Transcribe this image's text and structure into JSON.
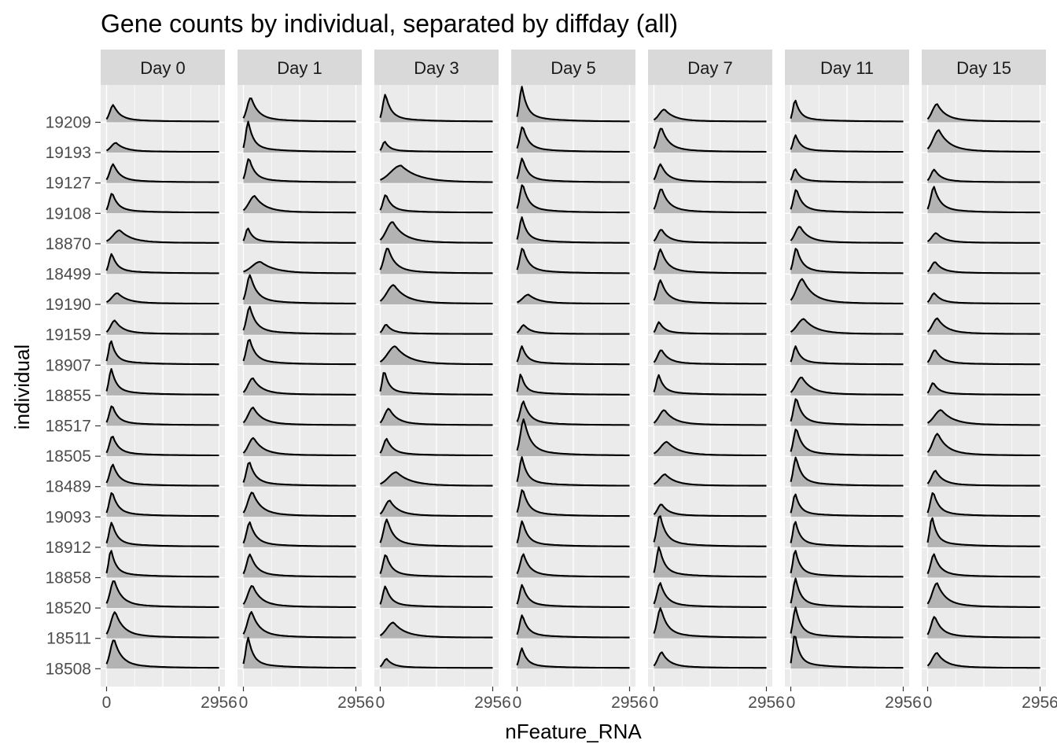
{
  "chart_data": {
    "type": "ridgeline",
    "title": "Gene counts by individual, separated by diffday (all)",
    "xlabel": "nFeature_RNA",
    "ylabel": "individual",
    "xlim": [
      0,
      2956
    ],
    "x_tick_labels": [
      "0",
      "2956"
    ],
    "grid": true,
    "individuals": [
      "19209",
      "19193",
      "19127",
      "19108",
      "18870",
      "18499",
      "19190",
      "19159",
      "18907",
      "18855",
      "18517",
      "18505",
      "18489",
      "19093",
      "18912",
      "18858",
      "18520",
      "18511",
      "18508"
    ],
    "panels": [
      {
        "label": "Day 0",
        "peaks": [
          [
            180,
            0.55
          ],
          [
            250,
            0.3
          ],
          [
            180,
            0.6
          ],
          [
            150,
            0.65
          ],
          [
            350,
            0.42
          ],
          [
            140,
            0.65
          ],
          [
            290,
            0.35
          ],
          [
            220,
            0.45
          ],
          [
            120,
            0.8
          ],
          [
            130,
            0.85
          ],
          [
            150,
            0.65
          ],
          [
            160,
            0.65
          ],
          [
            170,
            0.7
          ],
          [
            150,
            0.8
          ],
          [
            140,
            0.8
          ],
          [
            120,
            0.9
          ],
          [
            200,
            0.9
          ],
          [
            230,
            0.85
          ],
          [
            200,
            0.95
          ]
        ]
      },
      {
        "label": "Day 1",
        "peaks": [
          [
            200,
            0.8
          ],
          [
            130,
            1.0
          ],
          [
            150,
            0.8
          ],
          [
            300,
            0.55
          ],
          [
            120,
            0.5
          ],
          [
            450,
            0.38
          ],
          [
            180,
            0.95
          ],
          [
            170,
            0.9
          ],
          [
            160,
            0.85
          ],
          [
            250,
            0.55
          ],
          [
            260,
            0.58
          ],
          [
            270,
            0.58
          ],
          [
            160,
            0.8
          ],
          [
            240,
            0.8
          ],
          [
            170,
            0.8
          ],
          [
            180,
            0.75
          ],
          [
            240,
            0.72
          ],
          [
            220,
            0.85
          ],
          [
            130,
            1.0
          ]
        ]
      },
      {
        "label": "Day 3",
        "peaks": [
          [
            140,
            0.9
          ],
          [
            120,
            0.35
          ],
          [
            550,
            0.55
          ],
          [
            150,
            0.6
          ],
          [
            330,
            0.7
          ],
          [
            200,
            0.85
          ],
          [
            360,
            0.62
          ],
          [
            160,
            0.32
          ],
          [
            400,
            0.6
          ],
          [
            110,
            0.8
          ],
          [
            230,
            0.55
          ],
          [
            170,
            0.55
          ],
          [
            430,
            0.45
          ],
          [
            250,
            0.52
          ],
          [
            180,
            0.9
          ],
          [
            150,
            0.75
          ],
          [
            140,
            0.7
          ],
          [
            350,
            0.5
          ],
          [
            170,
            0.3
          ]
        ]
      },
      {
        "label": "Day 5",
        "peaks": [
          [
            130,
            1.15
          ],
          [
            150,
            0.85
          ],
          [
            140,
            0.8
          ],
          [
            150,
            0.95
          ],
          [
            130,
            0.85
          ],
          [
            150,
            0.85
          ],
          [
            300,
            0.3
          ],
          [
            180,
            0.3
          ],
          [
            130,
            0.6
          ],
          [
            100,
            0.7
          ],
          [
            170,
            0.78
          ],
          [
            180,
            1.2
          ],
          [
            130,
            0.95
          ],
          [
            150,
            0.9
          ],
          [
            140,
            0.85
          ],
          [
            170,
            0.75
          ],
          [
            140,
            0.75
          ],
          [
            140,
            0.75
          ],
          [
            130,
            0.65
          ]
        ]
      },
      {
        "label": "Day 7",
        "peaks": [
          [
            280,
            0.4
          ],
          [
            200,
            0.8
          ],
          [
            180,
            0.6
          ],
          [
            200,
            0.8
          ],
          [
            200,
            0.45
          ],
          [
            180,
            0.8
          ],
          [
            180,
            0.78
          ],
          [
            140,
            0.4
          ],
          [
            200,
            0.48
          ],
          [
            130,
            0.65
          ],
          [
            280,
            0.5
          ],
          [
            350,
            0.45
          ],
          [
            300,
            0.38
          ],
          [
            200,
            0.4
          ],
          [
            160,
            1.05
          ],
          [
            140,
            1.0
          ],
          [
            170,
            0.8
          ],
          [
            180,
            0.98
          ],
          [
            210,
            0.52
          ]
        ]
      },
      {
        "label": "Day 11",
        "peaks": [
          [
            120,
            0.72
          ],
          [
            130,
            0.55
          ],
          [
            120,
            0.45
          ],
          [
            150,
            0.78
          ],
          [
            240,
            0.55
          ],
          [
            150,
            0.85
          ],
          [
            310,
            0.82
          ],
          [
            350,
            0.5
          ],
          [
            130,
            0.6
          ],
          [
            290,
            0.58
          ],
          [
            150,
            0.9
          ],
          [
            150,
            0.9
          ],
          [
            140,
            0.95
          ],
          [
            120,
            0.75
          ],
          [
            120,
            0.85
          ],
          [
            120,
            0.9
          ],
          [
            130,
            0.95
          ],
          [
            130,
            1.0
          ],
          [
            110,
            1.15
          ]
        ]
      },
      {
        "label": "Day 15",
        "peaks": [
          [
            250,
            0.58
          ],
          [
            300,
            0.72
          ],
          [
            180,
            0.42
          ],
          [
            170,
            0.85
          ],
          [
            230,
            0.33
          ],
          [
            200,
            0.38
          ],
          [
            180,
            0.35
          ],
          [
            260,
            0.52
          ],
          [
            200,
            0.48
          ],
          [
            150,
            0.4
          ],
          [
            360,
            0.5
          ],
          [
            270,
            0.72
          ],
          [
            210,
            0.5
          ],
          [
            150,
            0.8
          ],
          [
            120,
            0.98
          ],
          [
            170,
            0.75
          ],
          [
            250,
            0.8
          ],
          [
            190,
            0.7
          ],
          [
            250,
            0.5
          ]
        ]
      }
    ]
  }
}
